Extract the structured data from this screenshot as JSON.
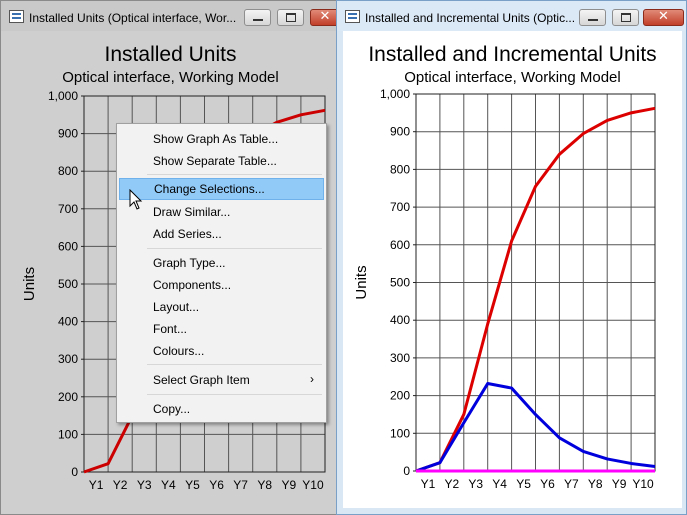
{
  "windows": {
    "left": {
      "title": "Installed Units (Optical interface, Wor...",
      "chart_title": "Installed Units",
      "chart_subtitle": "Optical interface, Working Model"
    },
    "right": {
      "title": "Installed and Incremental Units (Optic...",
      "chart_title": "Installed and Incremental Units",
      "chart_subtitle": "Optical interface, Working Model"
    }
  },
  "titlebar_buttons": {
    "minimize": "minimize-icon",
    "maximize": "maximize-icon",
    "close": "✕"
  },
  "context_menu": {
    "items": [
      {
        "label": "Show Graph As Table...",
        "highlighted": false,
        "submenu": false
      },
      {
        "label": "Show Separate Table...",
        "highlighted": false,
        "submenu": false
      },
      {
        "label": "Change Selections...",
        "highlighted": true,
        "submenu": false
      },
      {
        "label": "Draw Similar...",
        "highlighted": false,
        "submenu": false
      },
      {
        "label": "Add Series...",
        "highlighted": false,
        "submenu": false
      },
      {
        "label": "Graph Type...",
        "highlighted": false,
        "submenu": false
      },
      {
        "label": "Components...",
        "highlighted": false,
        "submenu": false
      },
      {
        "label": "Layout...",
        "highlighted": false,
        "submenu": false
      },
      {
        "label": "Font...",
        "highlighted": false,
        "submenu": false
      },
      {
        "label": "Colours...",
        "highlighted": false,
        "submenu": false
      },
      {
        "label": "Select Graph Item",
        "highlighted": false,
        "submenu": true
      },
      {
        "label": "Copy...",
        "highlighted": false,
        "submenu": false
      }
    ],
    "submenu_arrow": "›"
  },
  "chart_data": [
    {
      "type": "line",
      "title": "Installed Units",
      "subtitle": "Optical interface, Working Model",
      "xlabel": "",
      "ylabel": "Units",
      "categories": [
        "",
        "Y1",
        "Y2",
        "Y3",
        "Y4",
        "Y5",
        "Y6",
        "Y7",
        "Y8",
        "Y9",
        "Y10"
      ],
      "ylim": [
        0,
        1000
      ],
      "yticks": [
        "0",
        "100",
        "200",
        "300",
        "400",
        "500",
        "600",
        "700",
        "800",
        "900",
        "1,000"
      ],
      "grid": true,
      "series": [
        {
          "color": "#cc0000",
          "values": [
            0,
            22,
            150,
            390,
            610,
            755,
            840,
            895,
            930,
            950,
            962
          ]
        }
      ]
    },
    {
      "type": "line",
      "title": "Installed and Incremental Units",
      "subtitle": "Optical interface, Working Model",
      "xlabel": "",
      "ylabel": "Units",
      "categories": [
        "",
        "Y1",
        "Y2",
        "Y3",
        "Y4",
        "Y5",
        "Y6",
        "Y7",
        "Y8",
        "Y9",
        "Y10"
      ],
      "ylim": [
        0,
        1000
      ],
      "yticks": [
        "0",
        "100",
        "200",
        "300",
        "400",
        "500",
        "600",
        "700",
        "800",
        "900",
        "1,000"
      ],
      "grid": true,
      "series": [
        {
          "color": "#dd0000",
          "values": [
            0,
            22,
            150,
            390,
            610,
            755,
            840,
            895,
            930,
            950,
            962
          ]
        },
        {
          "color": "#0000dd",
          "values": [
            0,
            22,
            128,
            232,
            220,
            150,
            88,
            52,
            32,
            20,
            12
          ]
        },
        {
          "color": "#ff00ff",
          "values": [
            0,
            0,
            0,
            0,
            0,
            0,
            0,
            0,
            0,
            0,
            0
          ]
        }
      ]
    }
  ]
}
